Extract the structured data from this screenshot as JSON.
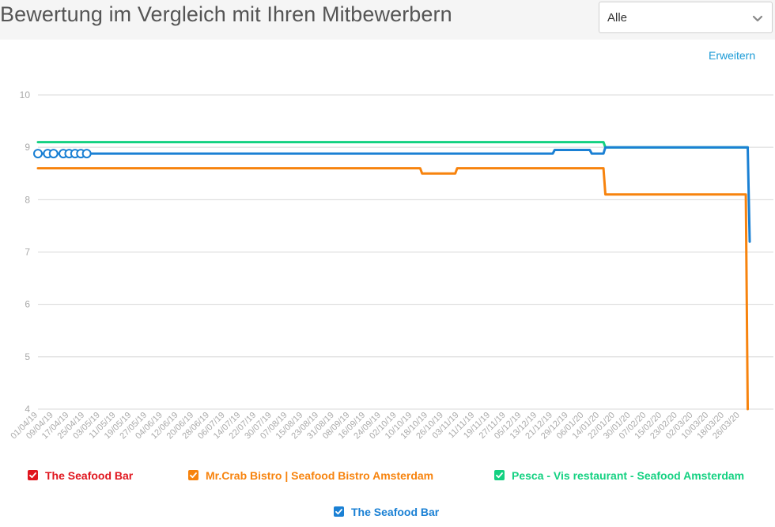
{
  "header": {
    "title": "Bewertung im Vergleich mit Ihren Mitbewerbern",
    "filter": {
      "selected": "Alle",
      "icon": "chevron-down-icon"
    }
  },
  "expand_link": "Erweitern",
  "colors": {
    "red": "#e0161e",
    "orange": "#f7830d",
    "green": "#13d181",
    "blue": "#1a80d4",
    "grid": "#d8d8d8",
    "tick": "#aaaaaa"
  },
  "legend": [
    {
      "label": "The Seafood Bar",
      "color": "#e0161e",
      "checked": true
    },
    {
      "label": "Mr.Crab Bistro | Seafood Bistro Amsterdam",
      "color": "#f7830d",
      "checked": true
    },
    {
      "label": "Pesca - Vis restaurant - Seafood Amsterdam",
      "color": "#13d181",
      "checked": true
    },
    {
      "label": "The Seafood Bar",
      "color": "#1a80d4",
      "checked": true
    }
  ],
  "chart_data": {
    "type": "line",
    "title": "",
    "xlabel": "",
    "ylabel": "",
    "ylim": [
      4,
      10
    ],
    "yticks": [
      4,
      5,
      6,
      7,
      8,
      9,
      10
    ],
    "grid": true,
    "legend_placement": "bottom",
    "x_range": [
      "2019-04-01",
      "2020-03-31"
    ],
    "x_ticks": [
      "01/04/19",
      "09/04/19",
      "17/04/19",
      "25/04/19",
      "03/05/19",
      "11/05/19",
      "19/05/19",
      "27/05/19",
      "04/06/19",
      "12/06/19",
      "20/06/19",
      "28/06/19",
      "06/07/19",
      "14/07/19",
      "22/07/19",
      "30/07/19",
      "07/08/19",
      "15/08/19",
      "23/08/19",
      "31/08/19",
      "08/09/19",
      "16/09/19",
      "24/09/19",
      "02/10/19",
      "10/10/19",
      "18/10/19",
      "26/10/19",
      "03/11/19",
      "11/11/19",
      "19/11/19",
      "27/11/19",
      "05/12/19",
      "13/12/19",
      "21/12/19",
      "29/12/19",
      "06/01/20",
      "14/01/20",
      "22/01/20",
      "30/01/20",
      "07/02/20",
      "15/02/20",
      "23/02/20",
      "02/03/20",
      "10/03/20",
      "18/03/20",
      "26/03/20"
    ],
    "series": [
      {
        "name": "Mr.Crab Bistro | Seafood Bistro Amsterdam",
        "color": "#f7830d",
        "x": [
          "2019-04-01",
          "2019-10-14",
          "2019-10-15",
          "2019-11-01",
          "2019-11-02",
          "2020-01-16",
          "2020-01-17",
          "2020-03-29",
          "2020-03-30"
        ],
        "y": [
          8.6,
          8.6,
          8.5,
          8.5,
          8.6,
          8.6,
          8.1,
          8.1,
          4.0
        ]
      },
      {
        "name": "Pesca - Vis restaurant - Seafood Amsterdam",
        "color": "#13d181",
        "x": [
          "2019-04-01",
          "2020-01-16",
          "2020-01-17",
          "2020-03-30"
        ],
        "y": [
          9.1,
          9.1,
          9.0,
          9.0
        ]
      },
      {
        "name": "The Seafood Bar",
        "color": "#1a80d4",
        "x": [
          "2019-04-01",
          "2019-12-21",
          "2019-12-22",
          "2020-01-09",
          "2020-01-10",
          "2020-01-16",
          "2020-01-17",
          "2020-03-30",
          "2020-03-31"
        ],
        "y": [
          8.88,
          8.88,
          8.95,
          8.95,
          8.88,
          8.88,
          9.0,
          9.0,
          7.2
        ],
        "markers_x": [
          "2019-04-01",
          "2019-04-06",
          "2019-04-09",
          "2019-04-14",
          "2019-04-17",
          "2019-04-20",
          "2019-04-23",
          "2019-04-26"
        ]
      }
    ]
  }
}
